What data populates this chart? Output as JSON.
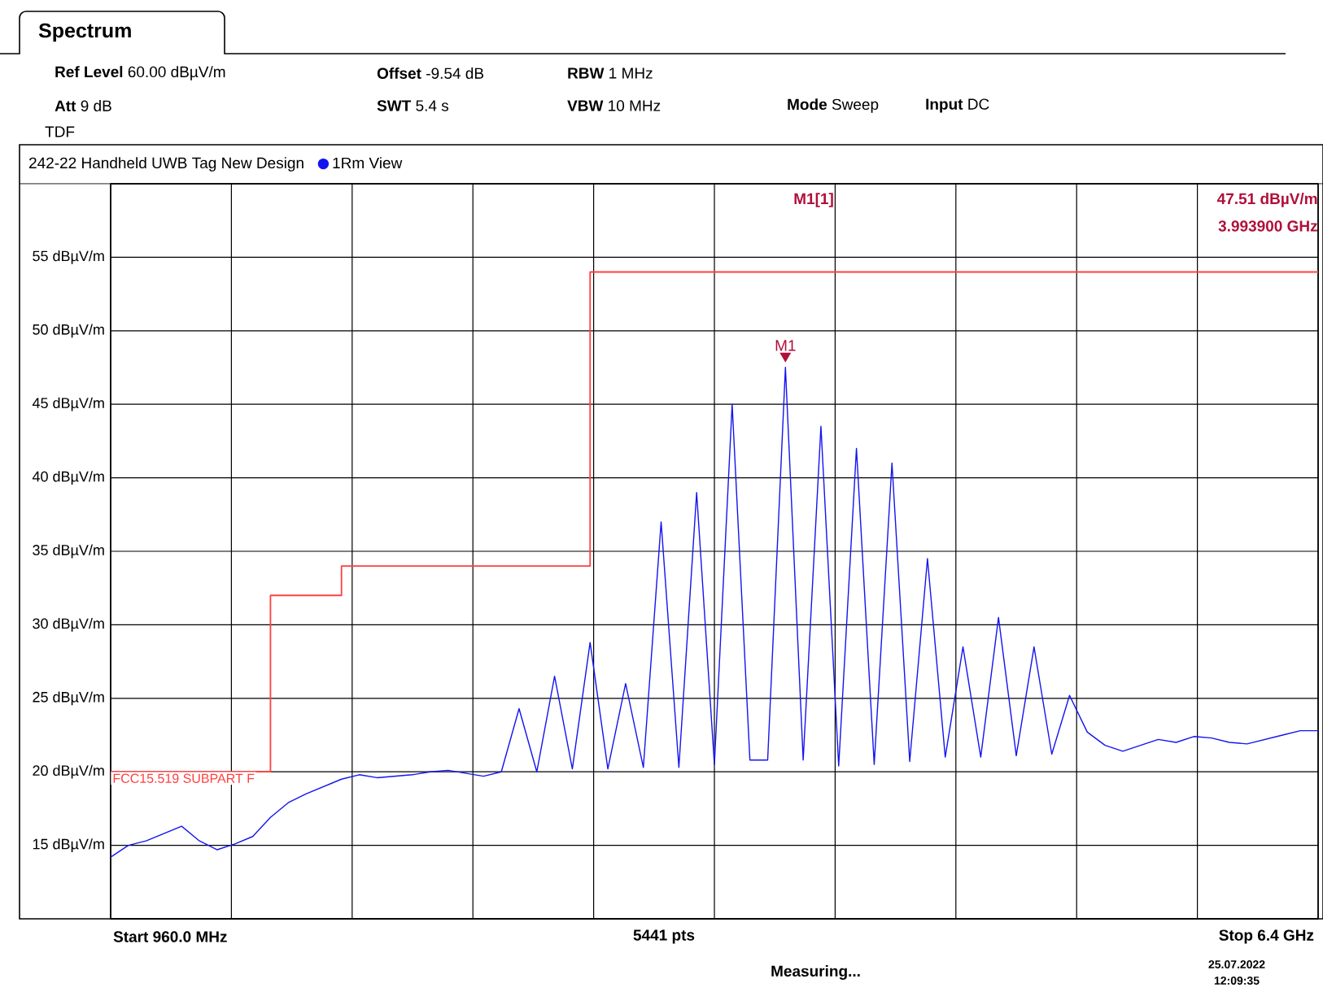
{
  "chart_data": {
    "type": "line",
    "title": "Spectrum",
    "subtitle": "242-22 Handheld UWB Tag New Design",
    "categories": [
      null,
      null,
      null,
      null,
      null,
      null,
      null,
      null,
      null,
      null,
      null,
      null,
      null,
      null,
      null,
      null,
      null,
      null,
      null,
      null,
      null,
      null,
      null,
      null,
      null,
      null,
      null,
      null,
      null,
      null,
      null,
      null,
      null,
      null,
      null,
      null,
      null,
      null,
      null,
      null,
      null,
      null,
      null,
      null,
      null,
      null,
      null,
      null,
      null,
      null,
      null,
      null,
      null,
      null,
      null,
      null,
      null,
      null,
      null,
      null,
      null,
      null,
      null,
      null,
      null,
      null,
      null,
      null,
      null
    ],
    "ylim": [
      10,
      60
    ],
    "yticks": [
      {
        "value": 10,
        "label": null
      },
      {
        "value": 15,
        "label": "15 dBµV/m"
      },
      {
        "value": 20,
        "label": "20 dBµV/m"
      },
      {
        "value": 25,
        "label": "25 dBµV/m"
      },
      {
        "value": 30,
        "label": "30 dBµV/m"
      },
      {
        "value": 35,
        "label": "35 dBµV/m"
      },
      {
        "value": 40,
        "label": "40 dBµV/m"
      },
      {
        "value": 45,
        "label": "45 dBµV/m"
      },
      {
        "value": 50,
        "label": "50 dBµV/m"
      },
      {
        "value": 55,
        "label": "55 dBµV/m"
      },
      {
        "value": 60,
        "label": null
      }
    ],
    "tick_labels": "y",
    "grid": true,
    "legend": "top left",
    "series": [
      {
        "name": "1Rm View",
        "color": "#1414f0",
        "values": [
          14.2,
          15.0,
          15.3,
          15.8,
          16.3,
          15.3,
          14.7,
          15.1,
          15.6,
          16.9,
          17.9,
          18.5,
          19.0,
          19.5,
          19.8,
          19.6,
          19.7,
          19.8,
          20.0,
          20.1,
          19.9,
          19.7,
          20.0,
          24.3,
          20.0,
          26.5,
          20.2,
          28.8,
          20.2,
          26,
          20.3,
          37,
          20.3,
          39,
          20.5,
          45,
          20.8,
          20.8,
          47.51,
          20.8,
          43.5,
          20.4,
          42,
          20.5,
          41,
          20.7,
          34.5,
          21.0,
          28.5,
          21.0,
          30.5,
          21.1,
          28.5,
          21.2,
          25.2,
          22.7,
          21.8,
          21.4,
          21.8,
          22.2,
          22.0,
          22.4,
          22.3,
          22.0,
          21.9,
          22.2,
          22.5,
          22.8,
          22.8
        ]
      },
      {
        "name": "FCC15.519 SUBPART F",
        "type": "step",
        "color": "#ff4040",
        "values": [
          20,
          20,
          20,
          20,
          20,
          20,
          20,
          20,
          20,
          32,
          32,
          32,
          32,
          34,
          34,
          34,
          34,
          34,
          34,
          34,
          34,
          34,
          34,
          34,
          34,
          34,
          34,
          54,
          54,
          54,
          54,
          54,
          54,
          54,
          54,
          54,
          54,
          54,
          54,
          54,
          54,
          54,
          54,
          54,
          54,
          54,
          54,
          54,
          54,
          54,
          54,
          54,
          54,
          54,
          54,
          54,
          54,
          54,
          54,
          54,
          54,
          54,
          54,
          54,
          54,
          54,
          54,
          54,
          54
        ]
      }
    ],
    "annotations": [
      "**Ref Level** 60.00 dBµV/m",
      "**Offset** -9.54 dB",
      "**RBW** 1 MHz",
      "**Att** 9 dB",
      "**SWT** 5.4 s",
      "**VBW** 10 MHz",
      "**Mode** Sweep",
      "**Input** DC",
      "TDF",
      "M1[1]",
      "47.51 dBµV/m",
      "3.993900 GHz",
      {
        "text": "M1",
        "y": 47.51
      },
      "5441 pts",
      "Measuring...",
      "25.07.2022",
      "12:09:35",
      "Start 960.0 MHz",
      "Stop 6.4 GHz"
    ]
  }
}
